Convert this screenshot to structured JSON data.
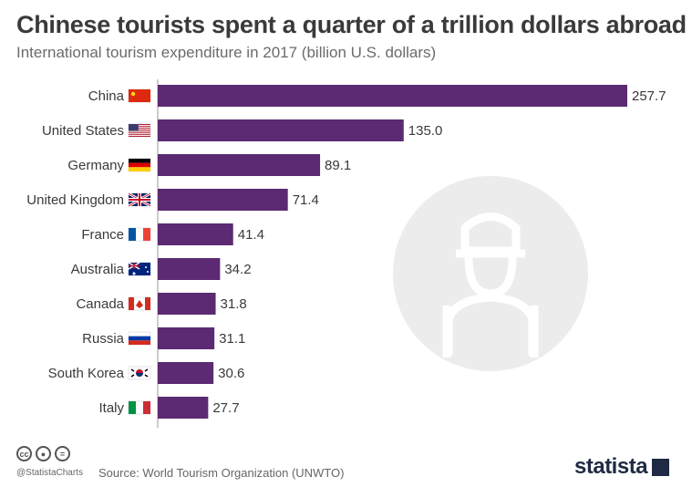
{
  "title": "Chinese tourists spent a quarter of a trillion dollars abroad",
  "subtitle": "International tourism expenditure in 2017 (billion U.S. dollars)",
  "colors": {
    "bar": "#5b2a72",
    "text": "#3a3a3a",
    "axis": "#999999",
    "watermark": "#ececec"
  },
  "chart_data": {
    "type": "bar",
    "orientation": "horizontal",
    "categories": [
      "China",
      "United States",
      "Germany",
      "United Kingdom",
      "France",
      "Australia",
      "Canada",
      "Russia",
      "South Korea",
      "Italy"
    ],
    "values": [
      257.7,
      135.0,
      89.1,
      71.4,
      41.4,
      34.2,
      31.8,
      31.1,
      30.6,
      27.7
    ],
    "value_labels": [
      "257.7",
      "135.0",
      "89.1",
      "71.4",
      "41.4",
      "34.2",
      "31.8",
      "31.1",
      "30.6",
      "27.7"
    ],
    "flag_icons": [
      "china-flag-icon",
      "usa-flag-icon",
      "germany-flag-icon",
      "uk-flag-icon",
      "france-flag-icon",
      "australia-flag-icon",
      "canada-flag-icon",
      "russia-flag-icon",
      "south-korea-flag-icon",
      "italy-flag-icon"
    ],
    "xlim": [
      0,
      257.7
    ],
    "grid": false,
    "legend": "none"
  },
  "footer": {
    "license_icons": [
      "cc-icon",
      "by-icon",
      "nd-icon"
    ],
    "handle": "@StatistaCharts",
    "source": "Source: World Tourism Organization (UNWTO)",
    "brand": "statista"
  }
}
